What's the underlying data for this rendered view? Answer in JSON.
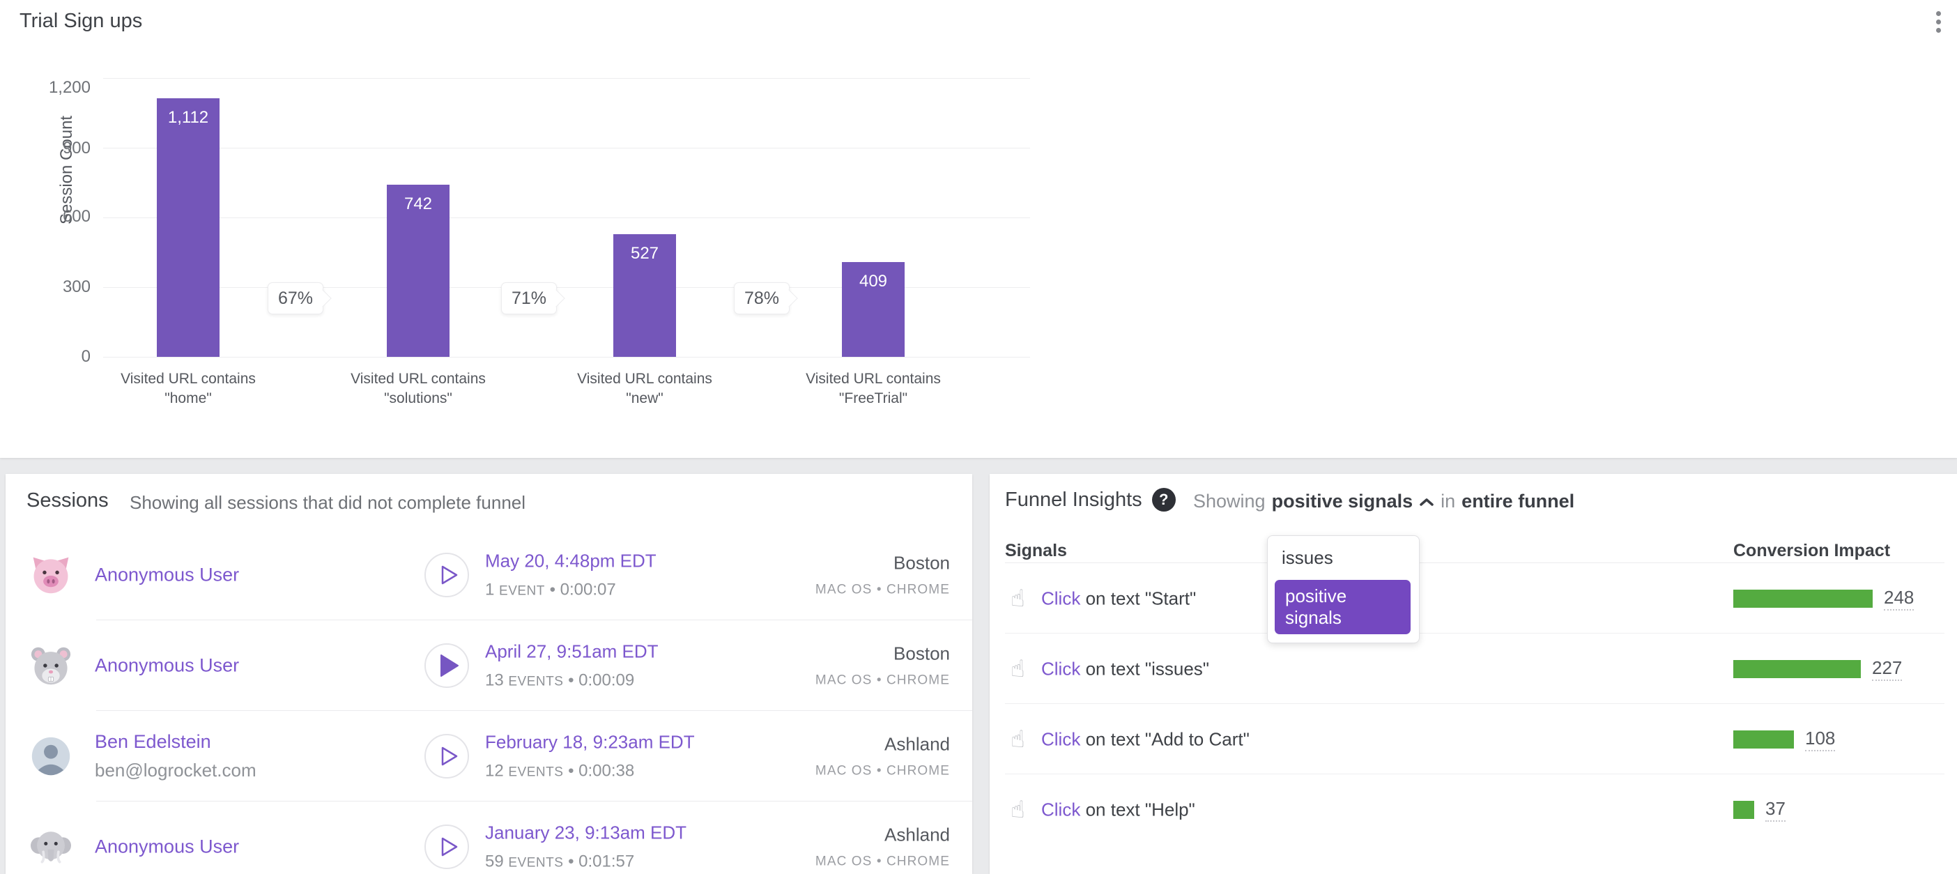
{
  "ui": {
    "bullet": "•"
  },
  "top_card": {
    "title": "Trial Sign ups"
  },
  "chart_data": {
    "type": "bar",
    "title": "Trial Sign ups",
    "ylabel": "Session Count",
    "ylim": [
      0,
      1200
    ],
    "grid": true,
    "yticks": [
      "1,200",
      "900",
      "600",
      "300",
      "0"
    ],
    "categories": [
      "Visited URL contains \"home\"",
      "Visited URL contains \"solutions\"",
      "Visited URL contains \"new\"",
      "Visited URL contains \"FreeTrial\""
    ],
    "cat_lines": [
      {
        "line1": "Visited URL contains",
        "line2": "\"home\""
      },
      {
        "line1": "Visited URL contains",
        "line2": "\"solutions\""
      },
      {
        "line1": "Visited URL contains",
        "line2": "\"new\""
      },
      {
        "line1": "Visited URL contains",
        "line2": "\"FreeTrial\""
      }
    ],
    "values": [
      1112,
      742,
      527,
      409
    ],
    "value_labels": [
      "1,112",
      "742",
      "527",
      "409"
    ],
    "conversion_rates": [
      "67%",
      "71%",
      "78%"
    ],
    "bar_color": "#7456b9"
  },
  "sessions": {
    "title": "Sessions",
    "subtitle": "Showing all sessions that did not complete funnel",
    "rows": [
      {
        "name": "Anonymous User",
        "email": "",
        "date": "May 20, 4:48pm EDT",
        "events_num": "1",
        "events_word": "EVENT",
        "duration": "0:00:07",
        "city": "Boston",
        "os_browser": "MAC OS • CHROME"
      },
      {
        "name": "Anonymous User",
        "email": "",
        "date": "April 27, 9:51am EDT",
        "events_num": "13",
        "events_word": "EVENTS",
        "duration": "0:00:09",
        "city": "Boston",
        "os_browser": "MAC OS • CHROME"
      },
      {
        "name": "Ben Edelstein",
        "email": "ben@logrocket.com",
        "date": "February 18, 9:23am EDT",
        "events_num": "12",
        "events_word": "EVENTS",
        "duration": "0:00:38",
        "city": "Ashland",
        "os_browser": "MAC OS • CHROME"
      },
      {
        "name": "Anonymous User",
        "email": "",
        "date": "January 23, 9:13am EDT",
        "events_num": "59",
        "events_word": "EVENTS",
        "duration": "0:01:57",
        "city": "Ashland",
        "os_browser": "MAC OS • CHROME"
      }
    ]
  },
  "funnel_insights": {
    "title": "Funnel Insights",
    "help_glyph": "?",
    "showing_prefix": "Showing",
    "showing_value": "positive signals",
    "showing_middle": "in",
    "showing_suffix": "entire funnel",
    "signals_header": "Signals",
    "impact_header": "Conversion Impact",
    "dropdown": {
      "options": [
        "issues",
        "positive signals"
      ],
      "selected": "positive signals"
    },
    "rows": [
      {
        "action": "Click",
        "rest": "on text \"Start\"",
        "impact": 248
      },
      {
        "action": "Click",
        "rest": "on text \"issues\"",
        "impact": 227
      },
      {
        "action": "Click",
        "rest": "on text \"Add to Cart\"",
        "impact": 108
      },
      {
        "action": "Click",
        "rest": "on text \"Help\"",
        "impact": 37
      }
    ]
  }
}
